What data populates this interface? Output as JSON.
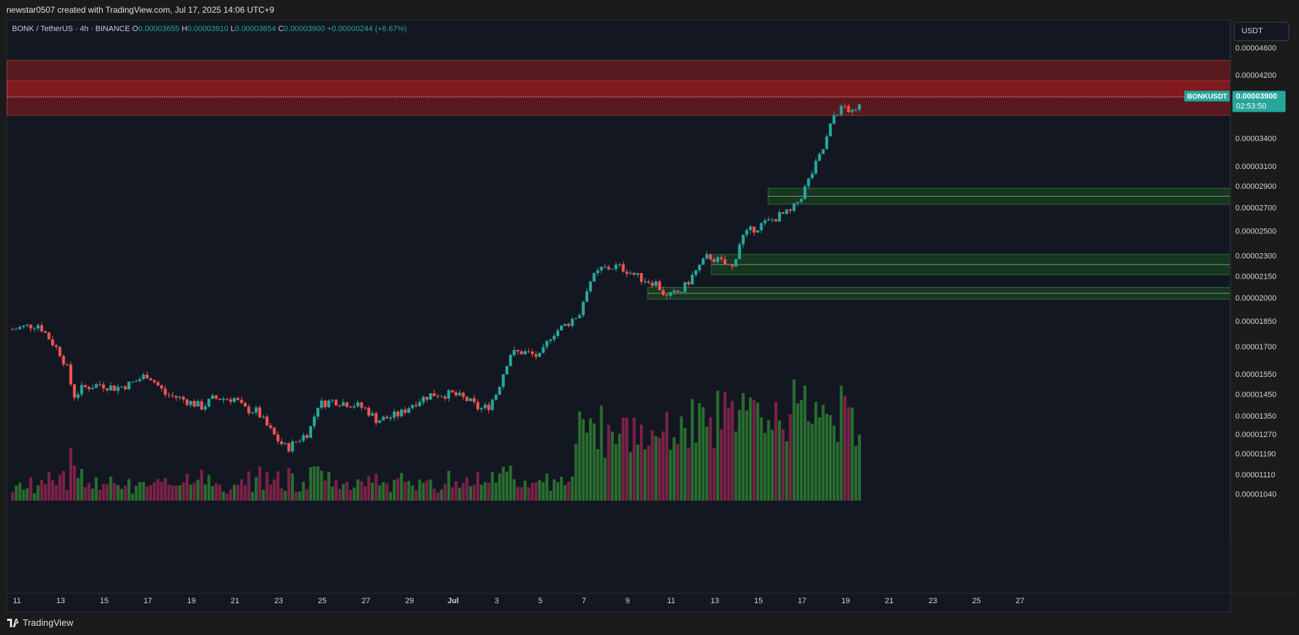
{
  "header": {
    "credit": "newstar0507 created with TradingView.com, Jul 17, 2025 14:06 UTC+9"
  },
  "legend": {
    "symbol": "BONK / TetherUS · 4h · BINANCE",
    "o_label": "O",
    "o_value": "0.00003655",
    "h_label": "H",
    "h_value": "0.00003910",
    "l_label": "L",
    "l_value": "0.00003654",
    "c_label": "C",
    "c_value": "0.00003900",
    "change": "+0.00000244 (+6.67%)"
  },
  "currency_button": "USDT",
  "price_tag": {
    "symbol": "BONKUSDT",
    "price": "0.00003900",
    "countdown": "02:53:50"
  },
  "footer": {
    "brand": "TradingView"
  },
  "colors": {
    "up": "#26a69a",
    "down": "#ef5350",
    "resistance": "#b71c1c",
    "support": "#1b5e20",
    "background": "#131722"
  },
  "chart_data": {
    "type": "candlestick",
    "scale": "log",
    "y_ticks": [
      "0.00004600",
      "0.00004200",
      "0.00003900",
      "0.00003400",
      "0.00003100",
      "0.00002900",
      "0.00002700",
      "0.00002500",
      "0.00002300",
      "0.00002150",
      "0.00002000",
      "0.00001850",
      "0.00001700",
      "0.00001550",
      "0.00001450",
      "0.00001350",
      "0.00001270",
      "0.00001190",
      "0.00001110",
      "0.00001040"
    ],
    "y_tick_values": [
      4.6e-05,
      4.2e-05,
      3.9e-05,
      3.4e-05,
      3.1e-05,
      2.9e-05,
      2.7e-05,
      2.5e-05,
      2.3e-05,
      2.15e-05,
      2e-05,
      1.85e-05,
      1.7e-05,
      1.55e-05,
      1.45e-05,
      1.35e-05,
      1.27e-05,
      1.19e-05,
      1.11e-05,
      1.04e-05
    ],
    "x_ticks": [
      "11",
      "13",
      "15",
      "17",
      "19",
      "21",
      "23",
      "25",
      "27",
      "29",
      "Jul",
      "3",
      "5",
      "7",
      "9",
      "11",
      "13",
      "15",
      "17",
      "19",
      "21",
      "23",
      "25",
      "27"
    ],
    "x_tick_days": [
      11,
      13,
      15,
      17,
      19,
      21,
      23,
      25,
      27,
      29,
      31,
      33,
      35,
      37,
      39,
      41,
      43,
      45,
      47,
      49,
      51,
      53,
      55,
      57
    ],
    "x_range_days": [
      10.8,
      58.5
    ],
    "ohlc_anchors_day_close": [
      [
        10.8,
        1.8e-05
      ],
      [
        11.5,
        1.82e-05
      ],
      [
        12.0,
        1.83e-05
      ],
      [
        12.4,
        1.76e-05
      ],
      [
        13.0,
        1.66e-05
      ],
      [
        13.3,
        1.58e-05
      ],
      [
        13.6,
        1.44e-05
      ],
      [
        14.0,
        1.48e-05
      ],
      [
        14.8,
        1.5e-05
      ],
      [
        15.5,
        1.48e-05
      ],
      [
        16.2,
        1.5e-05
      ],
      [
        17.0,
        1.55e-05
      ],
      [
        17.4,
        1.5e-05
      ],
      [
        17.8,
        1.45e-05
      ],
      [
        18.5,
        1.43e-05
      ],
      [
        19.5,
        1.39e-05
      ],
      [
        20.0,
        1.43e-05
      ],
      [
        21.0,
        1.43e-05
      ],
      [
        21.4,
        1.38e-05
      ],
      [
        22.0,
        1.37e-05
      ],
      [
        22.5,
        1.3e-05
      ],
      [
        23.0,
        1.24e-05
      ],
      [
        23.4,
        1.21e-05
      ],
      [
        23.8,
        1.24e-05
      ],
      [
        24.4,
        1.28e-05
      ],
      [
        24.8,
        1.4e-05
      ],
      [
        25.5,
        1.42e-05
      ],
      [
        26.5,
        1.4e-05
      ],
      [
        27.0,
        1.38e-05
      ],
      [
        27.5,
        1.33e-05
      ],
      [
        28.0,
        1.34e-05
      ],
      [
        28.6,
        1.36e-05
      ],
      [
        29.2,
        1.41e-05
      ],
      [
        30.0,
        1.45e-05
      ],
      [
        31.0,
        1.45e-05
      ],
      [
        31.7,
        1.42e-05
      ],
      [
        32.2,
        1.38e-05
      ],
      [
        32.6,
        1.39e-05
      ],
      [
        33.0,
        1.46e-05
      ],
      [
        33.6,
        1.66e-05
      ],
      [
        34.2,
        1.67e-05
      ],
      [
        35.0,
        1.64e-05
      ],
      [
        35.5,
        1.77e-05
      ],
      [
        36.2,
        1.83e-05
      ],
      [
        36.8,
        1.9e-05
      ],
      [
        37.2,
        2.1e-05
      ],
      [
        37.8,
        2.2e-05
      ],
      [
        38.5,
        2.22e-05
      ],
      [
        39.0,
        2.19e-05
      ],
      [
        39.5,
        2.14e-05
      ],
      [
        40.3,
        2.1e-05
      ],
      [
        40.8,
        2e-05
      ],
      [
        41.5,
        2.05e-05
      ],
      [
        42.2,
        2.2e-05
      ],
      [
        42.7,
        2.3e-05
      ],
      [
        43.3,
        2.25e-05
      ],
      [
        43.8,
        2.21e-05
      ],
      [
        44.2,
        2.44e-05
      ],
      [
        44.8,
        2.52e-05
      ],
      [
        45.5,
        2.58e-05
      ],
      [
        46.0,
        2.63e-05
      ],
      [
        46.5,
        2.66e-05
      ],
      [
        47.0,
        2.82e-05
      ],
      [
        47.5,
        3.05e-05
      ],
      [
        48.0,
        3.3e-05
      ],
      [
        48.5,
        3.7e-05
      ],
      [
        49.0,
        3.78e-05
      ],
      [
        49.4,
        3.66e-05
      ],
      [
        49.7,
        3.9e-05
      ]
    ],
    "zones": [
      {
        "kind": "resistance",
        "low": 3.67e-05,
        "high": 4.41e-05
      },
      {
        "kind": "resistance",
        "low": 3.91e-05,
        "high": 4.12e-05
      },
      {
        "kind": "support",
        "low": 2.73e-05,
        "high": 2.88e-05
      },
      {
        "kind": "support",
        "low": 2.16e-05,
        "high": 2.31e-05
      },
      {
        "kind": "support",
        "low": 1.99e-05,
        "high": 2.07e-05
      }
    ]
  }
}
